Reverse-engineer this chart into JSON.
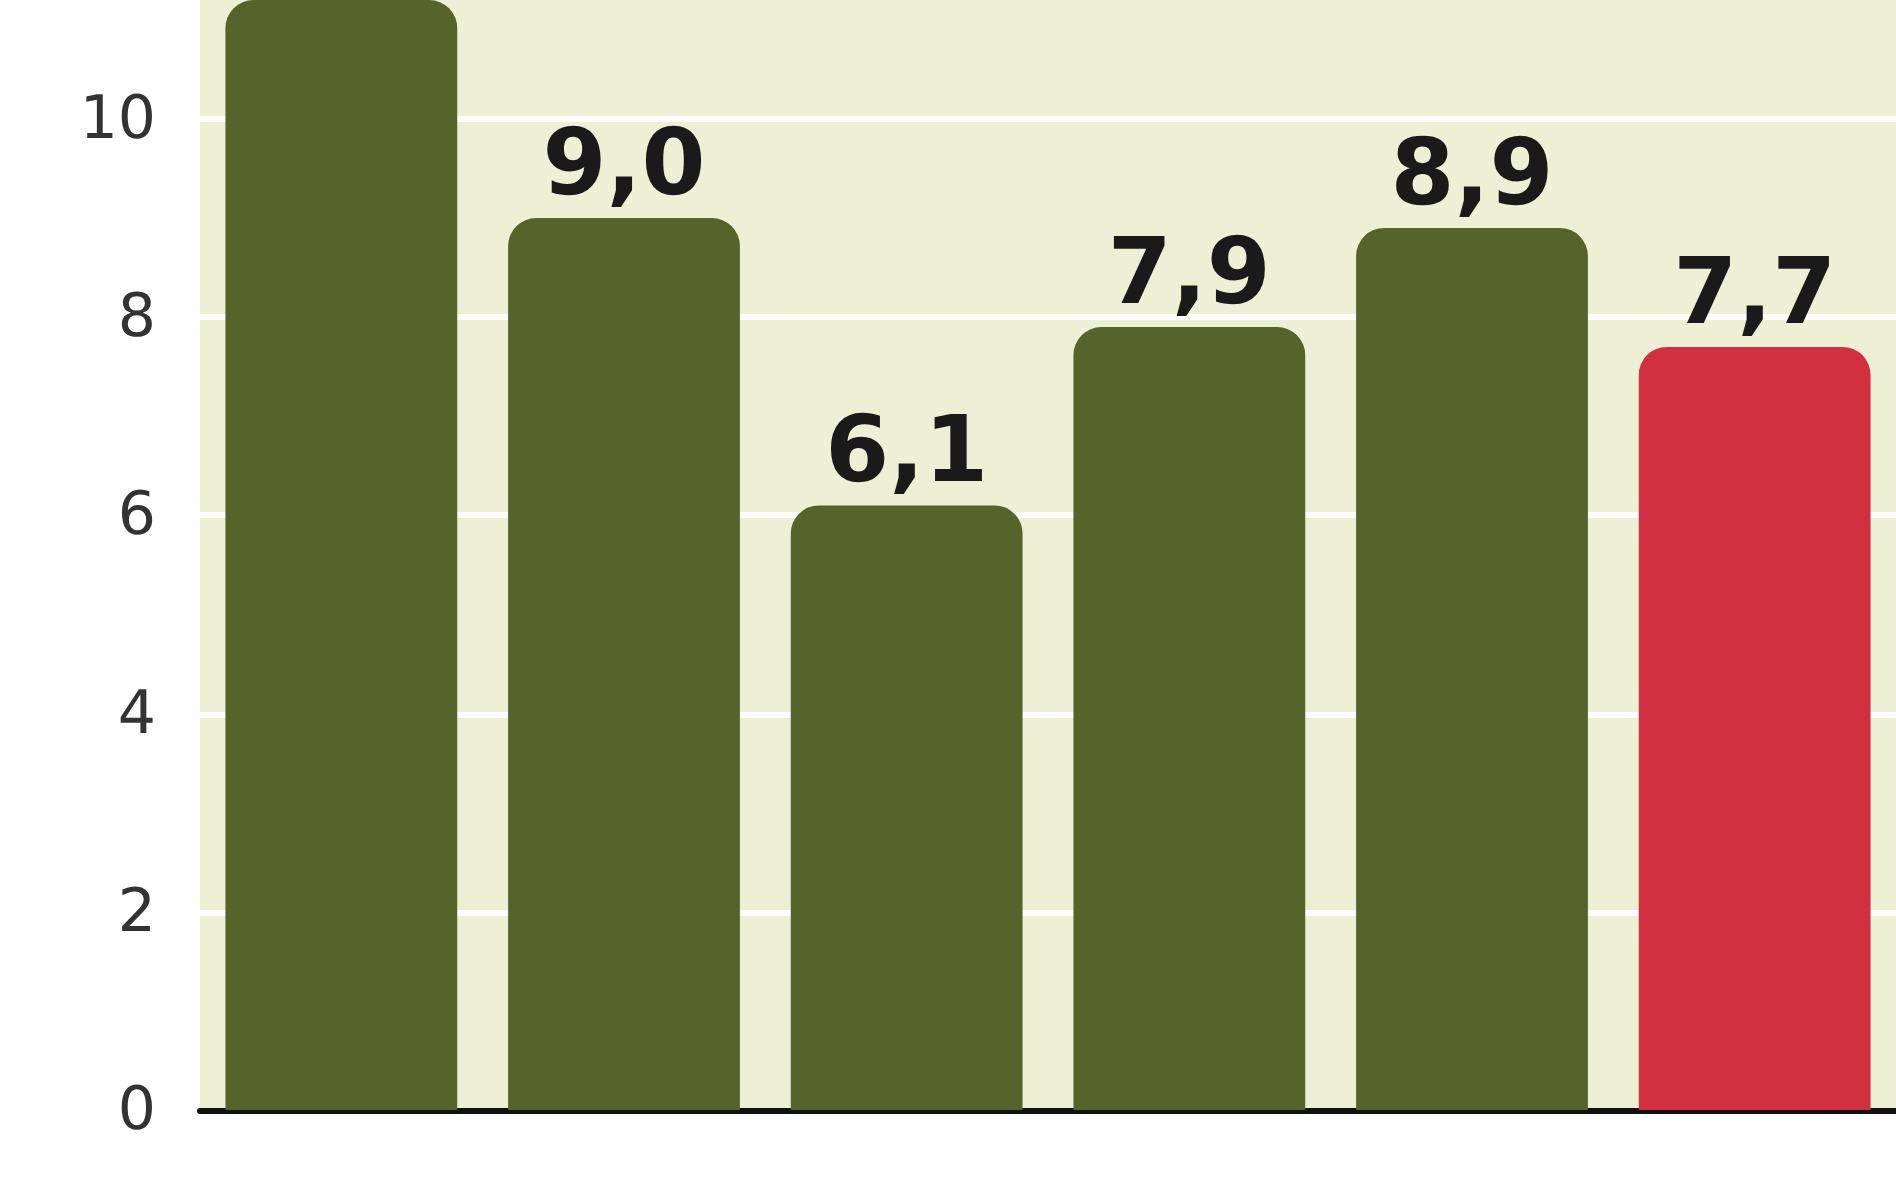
{
  "chart_data": {
    "type": "bar",
    "categories": [
      null,
      null,
      null,
      null,
      null,
      null
    ],
    "values": [
      11.2,
      9.0,
      6.1,
      7.9,
      8.9,
      7.7
    ],
    "value_labels": [
      null,
      "9,0",
      "6,1",
      "7,9",
      "8,9",
      "7,7"
    ],
    "colors": [
      "#56632b",
      "#56632b",
      "#56632b",
      "#56632b",
      "#56632b",
      "#d0303f"
    ],
    "ylim": [
      0,
      11.2
    ],
    "yticks": [
      0,
      2,
      4,
      6,
      8,
      10
    ],
    "grid": "y"
  }
}
